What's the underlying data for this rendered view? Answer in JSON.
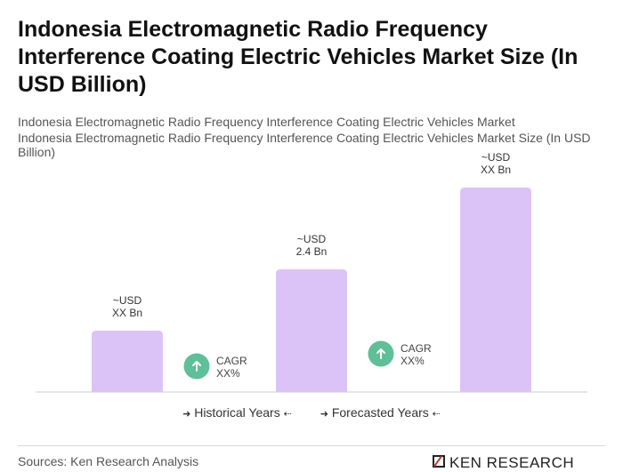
{
  "title": "Indonesia Electromagnetic Radio Frequency Interference Coating Electric Vehicles Market Size (In USD Billion)",
  "subtitle_1": "Indonesia Electromagnetic Radio Frequency Interference Coating Electric Vehicles Market",
  "subtitle_2": "Indonesia Electromagnetic Radio Frequency Interference Coating Electric Vehicles Market Size (In USD Billion)",
  "chart_data": {
    "type": "bar",
    "categories": [
      "",
      "",
      ""
    ],
    "values": [
      1.2,
      2.4,
      4.0
    ],
    "value_labels": [
      [
        "~USD",
        "XX Bn"
      ],
      [
        "~USD",
        "2.4 Bn"
      ],
      [
        "~USD",
        "XX Bn"
      ]
    ],
    "cagr_labels": [
      [
        "CAGR",
        "XX%"
      ],
      [
        "CAGR",
        "XX%"
      ]
    ],
    "ylim": [
      0,
      4.0
    ],
    "grid": false,
    "bar_color": "#dcc3f7",
    "cagr_color": "#5fbf98"
  },
  "legend": {
    "historical": "Historical Years",
    "forecasted": "Forecasted Years"
  },
  "footer": {
    "source": "Sources: Ken Research Analysis",
    "logo_text": "KEN RESEARCH"
  }
}
